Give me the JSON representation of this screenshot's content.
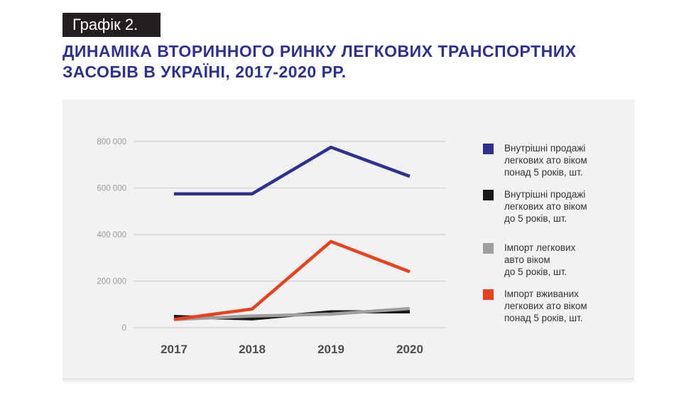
{
  "header": {
    "badge": "Графік 2.",
    "title_line1": "ДИНАМІКА ВТОРИННОГО РИНКУ ЛЕГКОВИХ ТРАНСПОРТНИХ",
    "title_line2": "ЗАСОБІВ В УКРАЇНІ, 2017-2020 РР."
  },
  "chart_data": {
    "type": "line",
    "title": "ДИНАМІКА ВТОРИННОГО РИНКУ ЛЕГКОВИХ ТРАНСПОРТНИХ ЗАСОБІВ В УКРАЇНІ, 2017-2020 РР.",
    "xlabel": "",
    "ylabel": "",
    "categories": [
      "2017",
      "2018",
      "2019",
      "2020"
    ],
    "ylim": [
      0,
      800000
    ],
    "yticks": [
      0,
      200000,
      400000,
      600000,
      800000
    ],
    "ytick_labels": [
      "0",
      "200 000",
      "400 000",
      "600 000",
      "800 000"
    ],
    "grid": true,
    "legend_position": "right",
    "series": [
      {
        "name": "Внутрішні продажі легкових ато віком понад 5 років, шт.",
        "legend_text": "Внутрішні продажі\nлегкових ато віком\nпонад 5 років, шт.",
        "color": "#2e3192",
        "values": [
          575000,
          575000,
          775000,
          650000
        ]
      },
      {
        "name": "Внутрішні продажі легкових ато віком до 5 років, шт.",
        "legend_text": "Внутрішні продажі\nлегкових ато віком\nдо 5 років, шт.",
        "color": "#1a1a1a",
        "values": [
          48000,
          38000,
          68000,
          68000
        ]
      },
      {
        "name": "Імпорт легкових авто віком до 5 років, шт.",
        "legend_text": "Імпорт легкових\nавто віком\nдо 5 років, шт.",
        "color": "#9e9e9e",
        "values": [
          35000,
          50000,
          58000,
          82000
        ]
      },
      {
        "name": "Імпорт вживаних легкових ато віком понад 5 років, шт.",
        "legend_text": "Імпорт вживаних\nлегкових ато віком\nпонад 5 років, шт.",
        "color": "#e8411d",
        "values": [
          35000,
          80000,
          370000,
          240000
        ]
      }
    ]
  }
}
